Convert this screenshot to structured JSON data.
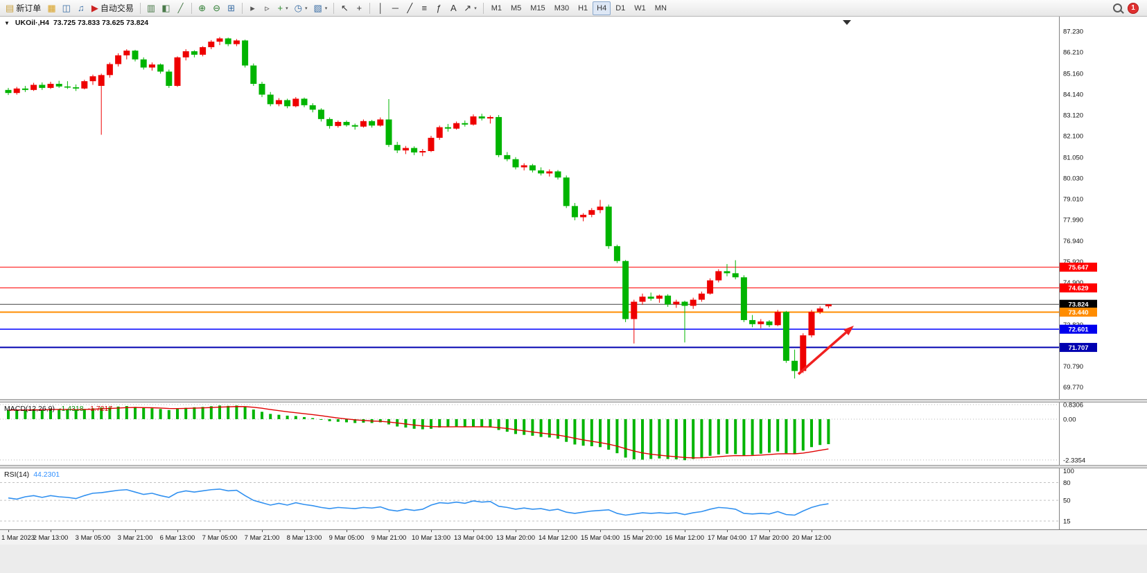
{
  "toolbar": {
    "buttons": [
      {
        "name": "new-order-button",
        "icon": "new-order-icon",
        "glyph": "▤",
        "color": "#c8a040",
        "label": "新订单"
      },
      {
        "name": "profiles-button",
        "icon": "profiles-icon",
        "glyph": "▦",
        "color": "#d8a020"
      },
      {
        "name": "market-watch-button",
        "icon": "market-watch-icon",
        "glyph": "◫",
        "color": "#3a6ea5"
      },
      {
        "name": "sound-button",
        "icon": "sound-icon",
        "glyph": "♫",
        "color": "#3a6ea5"
      },
      {
        "name": "autotrade-button",
        "icon": "autotrade-icon",
        "glyph": "▶",
        "color": "#cc2222",
        "label": "自动交易"
      },
      {
        "sep": true
      },
      {
        "name": "bar-chart-button",
        "icon": "bar-chart-icon",
        "glyph": "▥",
        "color": "#4a7a4a"
      },
      {
        "name": "candlestick-button",
        "icon": "candlestick-icon",
        "glyph": "◧",
        "color": "#4a7a4a"
      },
      {
        "name": "line-chart-button",
        "icon": "line-chart-icon",
        "glyph": "╱",
        "color": "#4a7a4a"
      },
      {
        "sep": true
      },
      {
        "name": "zoom-in-button",
        "icon": "zoom-in-icon",
        "glyph": "⊕",
        "color": "#2e7d32"
      },
      {
        "name": "zoom-out-button",
        "icon": "zoom-out-icon",
        "glyph": "⊖",
        "color": "#2e7d32"
      },
      {
        "name": "tile-windows-button",
        "icon": "tile-windows-icon",
        "glyph": "⊞",
        "color": "#3a6ea5"
      },
      {
        "sep": true
      },
      {
        "name": "auto-scroll-button",
        "icon": "auto-scroll-icon",
        "glyph": "▸",
        "color": "#555555"
      },
      {
        "name": "chart-shift-button",
        "icon": "chart-shift-icon",
        "glyph": "▹",
        "color": "#555555"
      },
      {
        "name": "indicators-button",
        "icon": "indicators-icon",
        "glyph": "+",
        "color": "#2e8b2e",
        "dropdown": true
      },
      {
        "name": "periods-button",
        "icon": "periods-icon",
        "glyph": "◷",
        "color": "#3a6ea5",
        "dropdown": true
      },
      {
        "name": "templates-button",
        "icon": "templates-icon",
        "glyph": "▧",
        "color": "#3a6ea5",
        "dropdown": true
      },
      {
        "sep": true
      },
      {
        "name": "cursor-button",
        "icon": "cursor-icon",
        "glyph": "↖",
        "color": "#333333"
      },
      {
        "name": "crosshair-button",
        "icon": "crosshair-icon",
        "glyph": "+",
        "color": "#333333"
      },
      {
        "sep": true
      },
      {
        "name": "vertical-line-button",
        "icon": "vertical-line-icon",
        "glyph": "│",
        "color": "#333333"
      },
      {
        "name": "horizontal-line-button",
        "icon": "horizontal-line-icon",
        "glyph": "─",
        "color": "#333333"
      },
      {
        "name": "trendline-button",
        "icon": "trendline-icon",
        "glyph": "╱",
        "color": "#333333"
      },
      {
        "name": "equidistant-channel-button",
        "icon": "equidistant-channel-icon",
        "glyph": "≡",
        "color": "#333333"
      },
      {
        "name": "fibonacci-button",
        "icon": "fibonacci-icon",
        "glyph": "ƒ",
        "color": "#333333"
      },
      {
        "name": "text-button",
        "icon": "text-icon",
        "glyph": "A",
        "color": "#333333"
      },
      {
        "name": "arrows-button",
        "icon": "arrows-icon",
        "glyph": "↗",
        "color": "#333333",
        "dropdown": true
      }
    ],
    "timeframes": [
      "M1",
      "M5",
      "M15",
      "M30",
      "H1",
      "H4",
      "D1",
      "W1",
      "MN"
    ],
    "active_timeframe": "H4",
    "notification_count": "1"
  },
  "chart": {
    "symbol": "UKOil·,H4",
    "ohlc": "73.725 73.833 73.625 73.824"
  },
  "indicators": {
    "macd_label": "MACD(12,26,9)",
    "macd_main": "-1.4318",
    "macd_signal": "-1.7217",
    "rsi_label": "RSI(14)",
    "rsi_value": "44.2301"
  },
  "chart_data": [
    {
      "type": "candlestick",
      "title": "UKOil,H4",
      "ohlc_display": {
        "open": "73.725",
        "high": "73.833",
        "low": "73.625",
        "close": "73.824"
      },
      "ylim": [
        69.17,
        87.95
      ],
      "y_axis_ticks": [
        "87.230",
        "86.210",
        "85.160",
        "84.140",
        "83.120",
        "82.100",
        "81.050",
        "80.030",
        "79.010",
        "77.990",
        "76.940",
        "75.920",
        "74.900",
        "73.870",
        "72.830",
        "71.810",
        "70.790",
        "69.770"
      ],
      "x_labels": [
        "1 Mar 2023",
        "2 Mar 13:00",
        "3 Mar 05:00",
        "3 Mar 21:00",
        "6 Mar 13:00",
        "7 Mar 05:00",
        "7 Mar 21:00",
        "8 Mar 13:00",
        "9 Mar 05:00",
        "9 Mar 21:00",
        "10 Mar 13:00",
        "13 Mar 04:00",
        "13 Mar 20:00",
        "14 Mar 12:00",
        "15 Mar 04:00",
        "15 Mar 20:00",
        "16 Mar 12:00",
        "17 Mar 04:00",
        "17 Mar 20:00",
        "20 Mar 12:00"
      ],
      "colors": {
        "up": "#ee0000",
        "down": "#00b400"
      },
      "hlines": [
        {
          "price": 75.647,
          "label": "75.647",
          "color": "#ff0000",
          "label_bg": "#ff0000",
          "width": 1
        },
        {
          "price": 74.629,
          "label": "74.629",
          "color": "#ff0000",
          "label_bg": "#ff0000",
          "width": 1
        },
        {
          "price": 73.824,
          "label": "73.824",
          "color": "#404040",
          "label_bg": "#000000",
          "width": 1
        },
        {
          "price": 73.44,
          "label": "73.440",
          "color": "#ff8c00",
          "label_bg": "#ff8c00",
          "width": 2
        },
        {
          "price": 72.601,
          "label": "72.601",
          "color": "#0000ff",
          "label_bg": "#0000ee",
          "width": 1.5
        },
        {
          "price": 71.707,
          "label": "71.707",
          "color": "#0000b0",
          "label_bg": "#0000b0",
          "width": 2
        }
      ],
      "annotation_arrow": {
        "from": [
          1152,
          516
        ],
        "to": [
          1232,
          446
        ],
        "color": "#f02020"
      },
      "candles": [
        [
          84.35,
          84.45,
          84.1,
          84.2
        ],
        [
          84.2,
          84.5,
          84.12,
          84.42
        ],
        [
          84.42,
          84.55,
          84.25,
          84.35
        ],
        [
          84.35,
          84.7,
          84.3,
          84.6
        ],
        [
          84.6,
          84.72,
          84.35,
          84.45
        ],
        [
          84.45,
          84.75,
          84.4,
          84.65
        ],
        [
          84.65,
          84.8,
          84.45,
          84.52
        ],
        [
          84.52,
          84.78,
          84.4,
          84.48
        ],
        [
          84.48,
          84.62,
          84.3,
          84.42
        ],
        [
          84.42,
          84.85,
          84.38,
          84.78
        ],
        [
          84.78,
          85.1,
          84.6,
          85.02
        ],
        [
          84.55,
          85.15,
          82.15,
          85.08
        ],
        [
          85.08,
          85.7,
          84.95,
          85.62
        ],
        [
          85.62,
          86.15,
          85.5,
          86.05
        ],
        [
          86.05,
          86.35,
          85.85,
          86.28
        ],
        [
          86.28,
          86.32,
          85.75,
          85.85
        ],
        [
          85.85,
          85.95,
          85.35,
          85.45
        ],
        [
          85.45,
          85.7,
          85.3,
          85.6
        ],
        [
          85.6,
          85.65,
          85.15,
          85.25
        ],
        [
          85.25,
          85.35,
          84.45,
          84.55
        ],
        [
          84.55,
          86.0,
          84.5,
          85.95
        ],
        [
          85.95,
          86.35,
          85.8,
          86.25
        ],
        [
          86.25,
          86.3,
          85.95,
          86.08
        ],
        [
          86.08,
          86.5,
          86.0,
          86.45
        ],
        [
          86.45,
          86.8,
          86.35,
          86.72
        ],
        [
          86.72,
          86.95,
          86.55,
          86.88
        ],
        [
          86.88,
          86.92,
          86.5,
          86.6
        ],
        [
          86.6,
          86.85,
          86.5,
          86.78
        ],
        [
          86.78,
          86.82,
          85.45,
          85.55
        ],
        [
          85.55,
          85.65,
          84.55,
          84.65
        ],
        [
          84.65,
          84.75,
          84.0,
          84.12
        ],
        [
          84.12,
          84.25,
          83.55,
          83.65
        ],
        [
          83.65,
          83.95,
          83.55,
          83.85
        ],
        [
          83.85,
          83.92,
          83.45,
          83.55
        ],
        [
          83.55,
          84.0,
          83.5,
          83.92
        ],
        [
          83.92,
          83.98,
          83.5,
          83.6
        ],
        [
          83.6,
          83.7,
          83.25,
          83.38
        ],
        [
          83.38,
          83.45,
          82.8,
          82.92
        ],
        [
          82.92,
          83.0,
          82.45,
          82.58
        ],
        [
          82.58,
          82.85,
          82.5,
          82.78
        ],
        [
          82.78,
          82.85,
          82.55,
          82.62
        ],
        [
          82.62,
          82.7,
          82.4,
          82.55
        ],
        [
          82.55,
          82.9,
          82.5,
          82.82
        ],
        [
          82.82,
          82.88,
          82.5,
          82.6
        ],
        [
          82.6,
          83.0,
          82.55,
          82.9
        ],
        [
          82.9,
          83.9,
          81.55,
          81.65
        ],
        [
          81.65,
          81.8,
          81.25,
          81.38
        ],
        [
          81.38,
          81.6,
          81.2,
          81.5
        ],
        [
          81.5,
          81.58,
          81.15,
          81.28
        ],
        [
          81.28,
          81.45,
          81.1,
          81.35
        ],
        [
          81.35,
          82.1,
          81.3,
          82.0
        ],
        [
          82.0,
          82.6,
          81.9,
          82.52
        ],
        [
          82.52,
          82.68,
          82.3,
          82.45
        ],
        [
          82.45,
          82.8,
          82.4,
          82.72
        ],
        [
          82.72,
          82.85,
          82.55,
          82.65
        ],
        [
          82.65,
          83.15,
          82.6,
          83.05
        ],
        [
          83.05,
          83.18,
          82.85,
          82.95
        ],
        [
          82.95,
          83.1,
          82.7,
          83.02
        ],
        [
          83.02,
          83.12,
          81.05,
          81.15
        ],
        [
          81.15,
          81.3,
          80.85,
          80.95
        ],
        [
          80.95,
          81.05,
          80.45,
          80.55
        ],
        [
          80.55,
          80.75,
          80.4,
          80.65
        ],
        [
          80.65,
          80.72,
          80.3,
          80.4
        ],
        [
          80.4,
          80.55,
          80.15,
          80.25
        ],
        [
          80.25,
          80.45,
          80.1,
          80.35
        ],
        [
          80.35,
          80.42,
          79.95,
          80.05
        ],
        [
          80.05,
          80.15,
          78.55,
          78.65
        ],
        [
          78.65,
          78.8,
          77.95,
          78.1
        ],
        [
          78.1,
          78.3,
          77.9,
          78.22
        ],
        [
          78.22,
          78.55,
          78.1,
          78.45
        ],
        [
          78.45,
          78.95,
          78.3,
          78.62
        ],
        [
          78.62,
          78.72,
          76.55,
          76.68
        ],
        [
          76.68,
          76.75,
          75.85,
          75.95
        ],
        [
          75.95,
          76.0,
          72.95,
          73.1
        ],
        [
          73.1,
          74.05,
          71.9,
          73.95
        ],
        [
          73.95,
          74.35,
          73.8,
          74.2
        ],
        [
          74.2,
          74.4,
          74.0,
          74.1
        ],
        [
          74.1,
          74.3,
          73.9,
          74.25
        ],
        [
          74.25,
          74.32,
          73.7,
          73.82
        ],
        [
          73.82,
          74.05,
          73.65,
          73.95
        ],
        [
          73.95,
          74.0,
          71.95,
          73.75
        ],
        [
          73.75,
          74.15,
          73.6,
          74.05
        ],
        [
          74.05,
          74.45,
          73.95,
          74.35
        ],
        [
          74.35,
          75.1,
          74.3,
          75.0
        ],
        [
          75.0,
          75.55,
          74.9,
          75.45
        ],
        [
          75.45,
          75.8,
          75.2,
          75.35
        ],
        [
          75.35,
          75.99,
          75.05,
          75.15
        ],
        [
          75.15,
          75.25,
          72.95,
          73.05
        ],
        [
          73.05,
          73.3,
          72.7,
          72.85
        ],
        [
          72.85,
          73.1,
          72.65,
          72.98
        ],
        [
          72.98,
          73.05,
          72.7,
          72.8
        ],
        [
          72.8,
          73.55,
          72.75,
          73.45
        ],
        [
          73.45,
          73.5,
          70.95,
          71.05
        ],
        [
          71.05,
          71.6,
          70.18,
          70.55
        ],
        [
          70.55,
          72.4,
          70.45,
          72.3
        ],
        [
          72.3,
          73.55,
          72.2,
          73.45
        ],
        [
          73.45,
          73.72,
          73.35,
          73.62
        ],
        [
          73.725,
          73.833,
          73.625,
          73.824
        ]
      ]
    },
    {
      "type": "bar",
      "name": "MACD",
      "label": "MACD(12,26,9) -1.4318 -1.7217",
      "ylim": [
        -2.62,
        0.95
      ],
      "y_ticks": [
        "0.8306",
        "0.00",
        "-2.3354"
      ],
      "color": "#00b400",
      "signal_color": "#e00000",
      "values": [
        0.52,
        0.55,
        0.5,
        0.58,
        0.55,
        0.6,
        0.57,
        0.55,
        0.52,
        0.58,
        0.62,
        0.66,
        0.68,
        0.72,
        0.75,
        0.7,
        0.64,
        0.62,
        0.58,
        0.52,
        0.58,
        0.65,
        0.68,
        0.7,
        0.74,
        0.78,
        0.76,
        0.78,
        0.7,
        0.55,
        0.42,
        0.3,
        0.25,
        0.2,
        0.18,
        0.12,
        0.06,
        -0.02,
        -0.12,
        -0.15,
        -0.18,
        -0.22,
        -0.2,
        -0.22,
        -0.18,
        -0.3,
        -0.42,
        -0.48,
        -0.55,
        -0.58,
        -0.55,
        -0.48,
        -0.45,
        -0.42,
        -0.45,
        -0.42,
        -0.45,
        -0.48,
        -0.62,
        -0.72,
        -0.85,
        -0.9,
        -0.95,
        -1.02,
        -1.05,
        -1.12,
        -1.3,
        -1.45,
        -1.52,
        -1.55,
        -1.6,
        -1.75,
        -1.95,
        -2.2,
        -2.3,
        -2.32,
        -2.28,
        -2.25,
        -2.28,
        -2.3,
        -2.35,
        -2.28,
        -2.2,
        -2.1,
        -2.02,
        -1.98,
        -2.0,
        -2.1,
        -2.05,
        -1.98,
        -1.92,
        -1.85,
        -1.95,
        -2.0,
        -1.8,
        -1.6,
        -1.48,
        -1.4318
      ]
    },
    {
      "type": "line",
      "name": "RSI",
      "label": "RSI(14) 44.2301",
      "ylim": [
        1,
        104
      ],
      "y_ticks": [
        "100",
        "80",
        "50",
        "15"
      ],
      "levels": [
        80,
        50,
        15
      ],
      "color": "#3090f0",
      "values": [
        54,
        52,
        56,
        58,
        55,
        58,
        56,
        55,
        53,
        58,
        62,
        63,
        65,
        67,
        68,
        64,
        60,
        62,
        58,
        55,
        63,
        66,
        64,
        66,
        68,
        69,
        66,
        67,
        58,
        50,
        46,
        42,
        45,
        42,
        46,
        43,
        41,
        38,
        36,
        38,
        37,
        36,
        38,
        37,
        39,
        34,
        32,
        35,
        33,
        35,
        42,
        46,
        45,
        47,
        45,
        49,
        47,
        48,
        40,
        38,
        35,
        37,
        35,
        36,
        33,
        35,
        30,
        28,
        30,
        32,
        33,
        34,
        28,
        25,
        27,
        29,
        28,
        29,
        28,
        29,
        26,
        29,
        31,
        35,
        38,
        37,
        35,
        28,
        27,
        28,
        27,
        31,
        26,
        25,
        32,
        38,
        42,
        44.23
      ]
    }
  ]
}
